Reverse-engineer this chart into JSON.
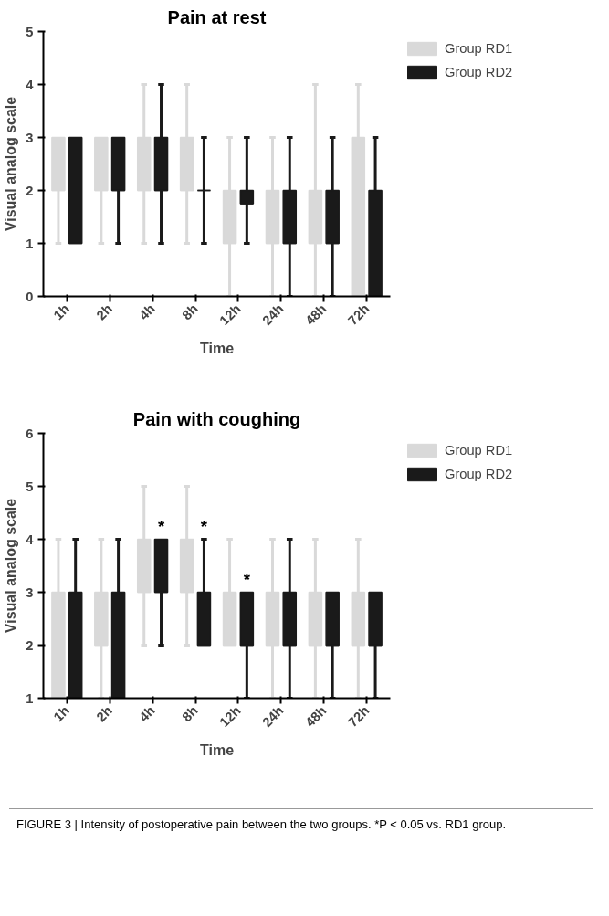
{
  "chart_data": [
    {
      "type": "box",
      "title": "Pain at rest",
      "xlabel": "Time",
      "ylabel": "Visual analog scale",
      "categories": [
        "1h",
        "2h",
        "4h",
        "8h",
        "12h",
        "24h",
        "48h",
        "72h"
      ],
      "ylim": [
        0,
        5
      ],
      "yticks": [
        0,
        1,
        2,
        3,
        4,
        5
      ],
      "grid": false,
      "legend": "top right",
      "series": [
        {
          "name": "Group RD1",
          "color": "#d9d9d9",
          "boxes": [
            {
              "low": 1,
              "q1": 2,
              "median": 2,
              "q3": 3,
              "high": 3
            },
            {
              "low": 1,
              "q1": 2,
              "median": 2,
              "q3": 3,
              "high": 3
            },
            {
              "low": 1,
              "q1": 2,
              "median": 2,
              "q3": 3,
              "high": 4
            },
            {
              "low": 1,
              "q1": 2,
              "median": 2,
              "q3": 3,
              "high": 4
            },
            {
              "low": 0,
              "q1": 1,
              "median": 1,
              "q3": 2,
              "high": 3
            },
            {
              "low": 0,
              "q1": 1,
              "median": 1,
              "q3": 2,
              "high": 3
            },
            {
              "low": 0,
              "q1": 1,
              "median": 1,
              "q3": 2,
              "high": 4
            },
            {
              "low": 0,
              "q1": 0,
              "median": 0,
              "q3": 3,
              "high": 4
            }
          ]
        },
        {
          "name": "Group RD2",
          "color": "#1a1a1a",
          "boxes": [
            {
              "low": 1,
              "q1": 1,
              "median": 1,
              "q3": 3,
              "high": 3
            },
            {
              "low": 1,
              "q1": 2,
              "median": 2,
              "q3": 3,
              "high": 3
            },
            {
              "low": 1,
              "q1": 2,
              "median": 2,
              "q3": 3,
              "high": 4
            },
            {
              "low": 1,
              "q1": 2,
              "median": 2,
              "q3": 2,
              "high": 3
            },
            {
              "low": 1,
              "q1": 1.75,
              "median": 1.75,
              "q3": 2,
              "high": 3
            },
            {
              "low": 0,
              "q1": 1,
              "median": 1,
              "q3": 2,
              "high": 3
            },
            {
              "low": 0,
              "q1": 1,
              "median": 1,
              "q3": 2,
              "high": 3
            },
            {
              "low": 0,
              "q1": 0,
              "median": 0,
              "q3": 2,
              "high": 3
            }
          ]
        }
      ]
    },
    {
      "type": "box",
      "title": "Pain with coughing",
      "xlabel": "Time",
      "ylabel": "Visual analog scale",
      "categories": [
        "1h",
        "2h",
        "4h",
        "8h",
        "12h",
        "24h",
        "48h",
        "72h"
      ],
      "ylim": [
        1,
        6
      ],
      "yticks": [
        1,
        2,
        3,
        4,
        5,
        6
      ],
      "grid": false,
      "legend": "top right",
      "series": [
        {
          "name": "Group RD1",
          "color": "#d9d9d9",
          "boxes": [
            {
              "low": 1,
              "q1": 1,
              "median": 1,
              "q3": 3,
              "high": 4
            },
            {
              "low": 1,
              "q1": 2,
              "median": 2,
              "q3": 3,
              "high": 4
            },
            {
              "low": 2,
              "q1": 3,
              "median": 3,
              "q3": 4,
              "high": 5
            },
            {
              "low": 2,
              "q1": 3,
              "median": 3,
              "q3": 4,
              "high": 5
            },
            {
              "low": 2,
              "q1": 2,
              "median": 2,
              "q3": 3,
              "high": 4
            },
            {
              "low": 1,
              "q1": 2,
              "median": 2,
              "q3": 3,
              "high": 4
            },
            {
              "low": 1,
              "q1": 2,
              "median": 2,
              "q3": 3,
              "high": 4
            },
            {
              "low": 1,
              "q1": 2,
              "median": 2,
              "q3": 3,
              "high": 4
            }
          ]
        },
        {
          "name": "Group RD2",
          "color": "#1a1a1a",
          "boxes": [
            {
              "low": 1,
              "q1": 1,
              "median": 1,
              "q3": 3,
              "high": 4
            },
            {
              "low": 1,
              "q1": 1,
              "median": 1,
              "q3": 3,
              "high": 4
            },
            {
              "low": 2,
              "q1": 3,
              "median": 3,
              "q3": 4,
              "high": 4
            },
            {
              "low": 2,
              "q1": 2,
              "median": 2,
              "q3": 3,
              "high": 4
            },
            {
              "low": 1,
              "q1": 2,
              "median": 2,
              "q3": 3,
              "high": 3
            },
            {
              "low": 1,
              "q1": 2,
              "median": 2,
              "q3": 3,
              "high": 4
            },
            {
              "low": 1,
              "q1": 2,
              "median": 2,
              "q3": 3,
              "high": 3
            },
            {
              "low": 1,
              "q1": 2,
              "median": 2,
              "q3": 3,
              "high": 3
            }
          ]
        }
      ],
      "annotations": [
        {
          "text": "*",
          "x": "4h",
          "y": 4
        },
        {
          "text": "*",
          "x": "8h",
          "y": 4
        },
        {
          "text": "*",
          "x": "12h",
          "y": 3
        },
        "FIGURE 3 | Intensity of postoperative pain between the two groups. *P < 0.05 vs. RD1 group."
      ]
    }
  ]
}
